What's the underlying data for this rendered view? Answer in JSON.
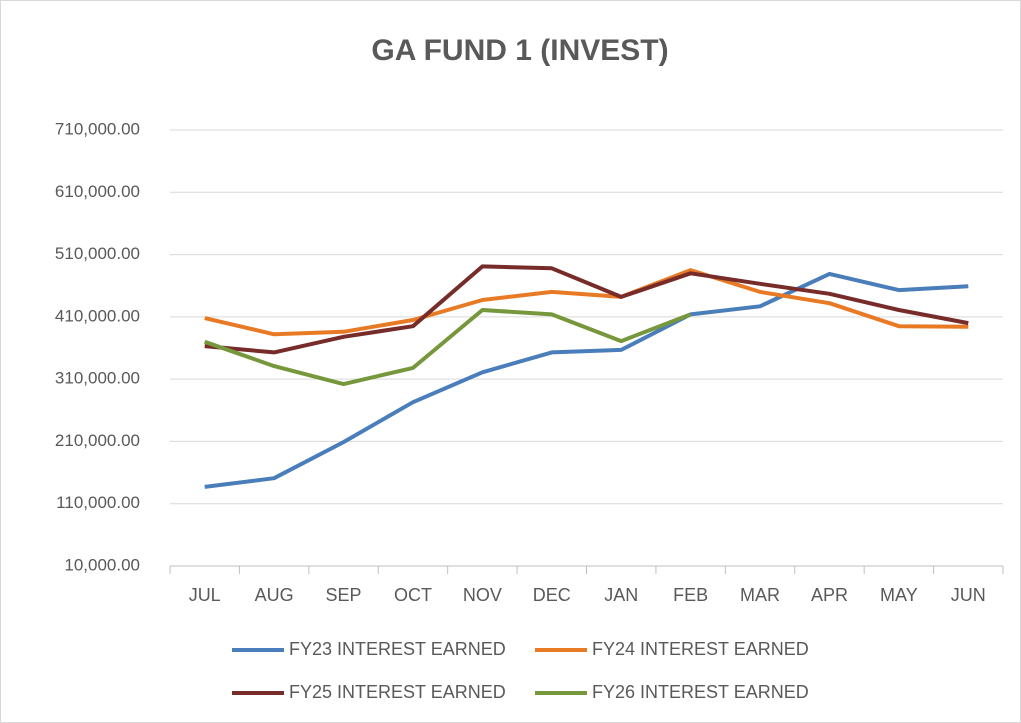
{
  "chart_data": {
    "type": "line",
    "title": "GA FUND 1 (INVEST)",
    "categories": [
      "JUL",
      "AUG",
      "SEP",
      "OCT",
      "NOV",
      "DEC",
      "JAN",
      "FEB",
      "MAR",
      "APR",
      "MAY",
      "JUN"
    ],
    "series": [
      {
        "name": "FY23 INTEREST EARNED",
        "color": "#4a7ebb",
        "values": [
          137000,
          151000,
          209000,
          273000,
          321000,
          353000,
          357000,
          414000,
          427000,
          479000,
          453000,
          459000
        ]
      },
      {
        "name": "FY24 INTEREST EARNED",
        "color": "#e97a25",
        "values": [
          408000,
          382000,
          386000,
          405000,
          437000,
          450000,
          442000,
          485000,
          450000,
          432000,
          395000,
          394000
        ]
      },
      {
        "name": "FY25 INTEREST EARNED",
        "color": "#772c2a",
        "values": [
          363000,
          353000,
          378000,
          395000,
          491000,
          488000,
          442000,
          480000,
          463000,
          447000,
          421000,
          400000
        ]
      },
      {
        "name": "FY26 INTEREST EARNED",
        "color": "#77973d",
        "values": [
          370000,
          331000,
          302000,
          328000,
          421000,
          414000,
          371000,
          414000,
          null,
          null,
          null,
          null
        ]
      }
    ],
    "ylim": [
      10000,
      710000
    ],
    "yticks": [
      {
        "value": 10000,
        "label": "10,000.00"
      },
      {
        "value": 110000,
        "label": "110,000.00"
      },
      {
        "value": 210000,
        "label": "210,000.00"
      },
      {
        "value": 310000,
        "label": "310,000.00"
      },
      {
        "value": 410000,
        "label": "410,000.00"
      },
      {
        "value": 510000,
        "label": "510,000.00"
      },
      {
        "value": 610000,
        "label": "610,000.00"
      },
      {
        "value": 710000,
        "label": "710,000.00"
      }
    ],
    "grid": true,
    "legend": "bottom"
  }
}
